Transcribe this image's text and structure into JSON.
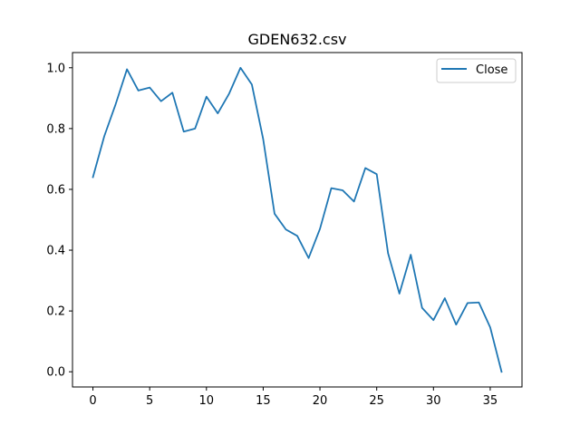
{
  "chart_data": {
    "type": "line",
    "title": "GDEN632.csv",
    "xlabel": "",
    "ylabel": "",
    "xlim": [
      -1.8,
      37.8
    ],
    "ylim": [
      -0.05,
      1.05
    ],
    "x_ticks": [
      0,
      5,
      10,
      15,
      20,
      25,
      30,
      35
    ],
    "y_ticks": [
      0.0,
      0.2,
      0.4,
      0.6,
      0.8,
      1.0
    ],
    "x_tick_labels": [
      "0",
      "5",
      "10",
      "15",
      "20",
      "25",
      "30",
      "35"
    ],
    "y_tick_labels": [
      "0.0",
      "0.2",
      "0.4",
      "0.6",
      "0.8",
      "1.0"
    ],
    "grid": false,
    "legend_position": "top-right",
    "series": [
      {
        "name": "Close",
        "color": "#1f77b4",
        "x": [
          0,
          1,
          2,
          3,
          4,
          5,
          6,
          7,
          8,
          9,
          10,
          11,
          12,
          13,
          14,
          15,
          16,
          17,
          18,
          19,
          20,
          21,
          22,
          23,
          24,
          25,
          26,
          27,
          28,
          29,
          30,
          31,
          32,
          33,
          34,
          35,
          36
        ],
        "values": [
          0.64,
          0.775,
          0.88,
          0.995,
          0.925,
          0.935,
          0.89,
          0.918,
          0.79,
          0.8,
          0.905,
          0.85,
          0.915,
          1.0,
          0.945,
          0.765,
          0.52,
          0.468,
          0.447,
          0.374,
          0.47,
          0.604,
          0.597,
          0.56,
          0.67,
          0.65,
          0.39,
          0.257,
          0.385,
          0.21,
          0.17,
          0.242,
          0.155,
          0.226,
          0.228,
          0.146,
          0.0
        ]
      }
    ]
  }
}
